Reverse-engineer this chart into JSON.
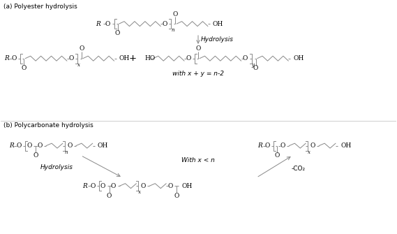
{
  "title_a": "(a) Polyester hydrolysis",
  "title_b": "(b) Polycarbonate hydrolysis",
  "hydrolysis_label": "Hydrolysis",
  "with_x_y": "with x + y = n-2",
  "with_x_n": "With x < n",
  "co2_label": "-CO₂",
  "bg_color": "#ffffff",
  "line_color": "#888888",
  "text_color": "#000000",
  "font_size": 6.5
}
